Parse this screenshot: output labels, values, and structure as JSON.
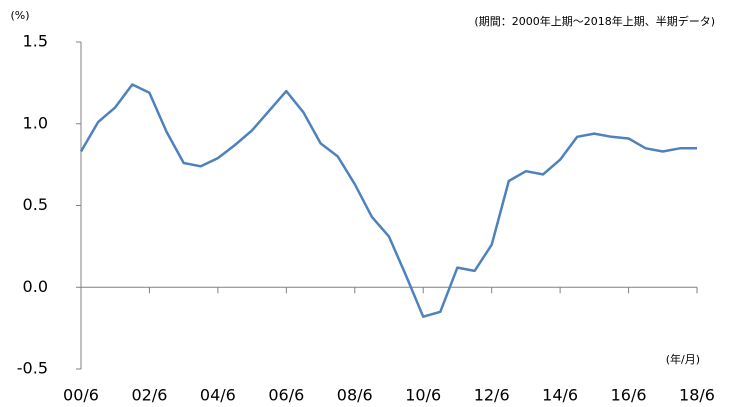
{
  "chart_data": {
    "type": "line",
    "subtitle": "(期間：2000年上期～2018年上期、半期データ)",
    "y_unit": "(%)",
    "x_unit": "(年/月)",
    "categories": [
      "00/6",
      null,
      null,
      null,
      "02/6",
      null,
      null,
      null,
      "04/6",
      null,
      null,
      null,
      "06/6",
      null,
      null,
      null,
      "08/6",
      null,
      null,
      null,
      "10/6",
      null,
      null,
      null,
      "12/6",
      null,
      null,
      null,
      "14/6",
      null,
      null,
      null,
      "16/6",
      null,
      null,
      null,
      "18/6"
    ],
    "values": [
      0.83,
      1.01,
      1.1,
      1.24,
      1.19,
      0.95,
      0.76,
      0.74,
      0.79,
      0.87,
      0.96,
      1.08,
      1.2,
      1.07,
      0.88,
      0.8,
      0.63,
      0.43,
      0.31,
      0.07,
      -0.18,
      -0.15,
      0.12,
      0.1,
      0.26,
      0.65,
      0.71,
      0.69,
      0.78,
      0.92,
      0.94,
      0.92,
      0.91,
      0.85,
      0.83,
      0.85,
      0.85
    ],
    "color": "#4f81bd",
    "ylim": [
      -0.5,
      1.5
    ],
    "yticks": [
      -0.5,
      {
        "value": 0,
        "label": "0.0"
      },
      0.5,
      {
        "value": 1,
        "label": "1.0"
      },
      1.5
    ],
    "grid": false
  }
}
